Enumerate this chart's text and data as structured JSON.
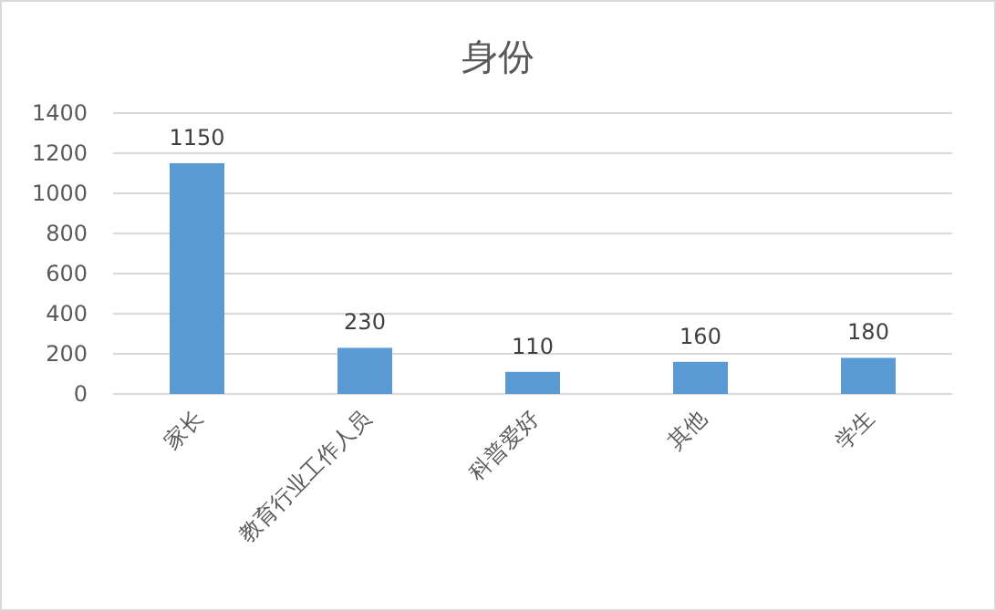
{
  "chart_data": {
    "type": "bar",
    "title": "身份",
    "categories": [
      "家长",
      "教育行业工作人员",
      "科普爱好",
      "其他",
      "学生"
    ],
    "values": [
      1150,
      230,
      110,
      160,
      180
    ],
    "color": "#5b9bd5",
    "ylim": [
      0,
      1400
    ],
    "yticks": [
      0,
      200,
      400,
      600,
      800,
      1000,
      1200,
      1400
    ],
    "grid": "y",
    "data_labels": true
  }
}
